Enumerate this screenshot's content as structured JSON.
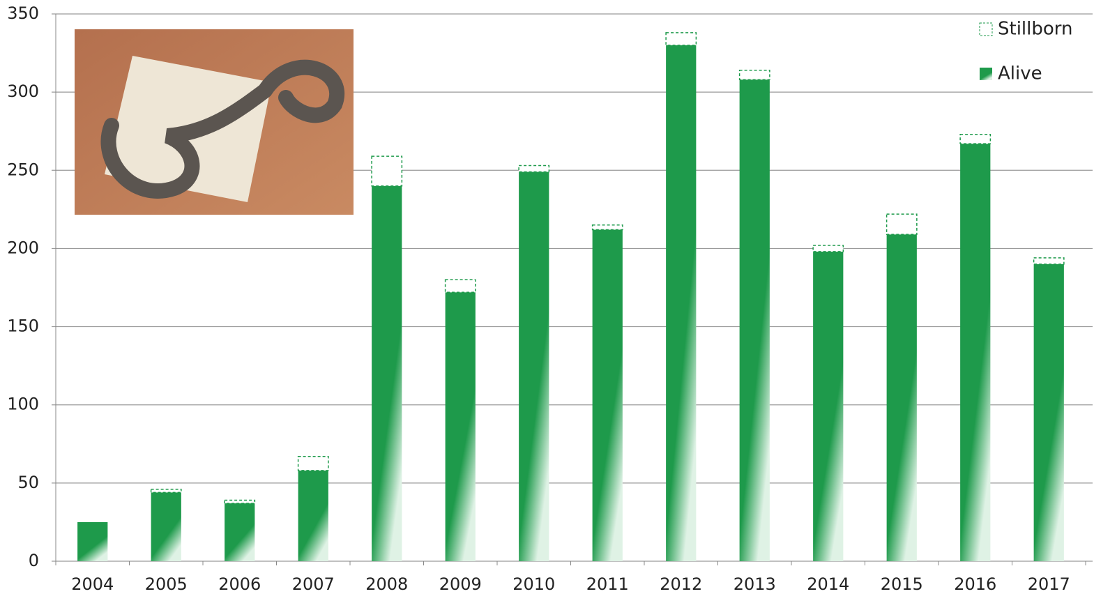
{
  "chart_data": {
    "type": "stacked_bar",
    "categories": [
      "2004",
      "2005",
      "2006",
      "2007",
      "2008",
      "2009",
      "2010",
      "2011",
      "2012",
      "2013",
      "2014",
      "2015",
      "2016",
      "2017"
    ],
    "series": [
      {
        "name": "Alive",
        "color": "#1e9a4b",
        "values": [
          25,
          44,
          37,
          58,
          240,
          172,
          249,
          212,
          330,
          308,
          198,
          209,
          267,
          190
        ]
      },
      {
        "name": "Stillborn",
        "color": "#ffffff",
        "values": [
          0,
          2,
          2,
          9,
          19,
          8,
          4,
          3,
          8,
          6,
          4,
          13,
          6,
          4
        ]
      }
    ],
    "ylim": [
      0,
      350
    ],
    "yticks": [
      0,
      50,
      100,
      150,
      200,
      250,
      300,
      350
    ],
    "grid": true,
    "legend": "top-right"
  }
}
